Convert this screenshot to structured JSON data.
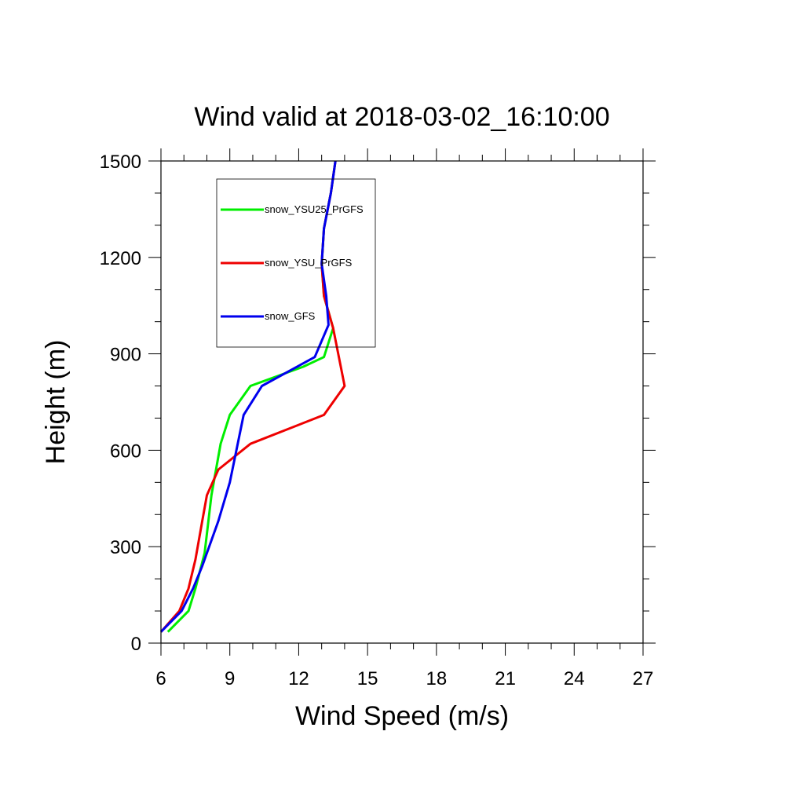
{
  "chart_data": {
    "type": "line",
    "title": "Wind valid at 2018-03-02_16:10:00",
    "xlabel": "Wind Speed (m/s)",
    "ylabel": "Height (m)",
    "xlim": [
      6,
      27
    ],
    "ylim": [
      0,
      1500
    ],
    "xticks": [
      "6",
      "9",
      "12",
      "15",
      "18",
      "21",
      "24",
      "27"
    ],
    "yticks": [
      "0",
      "300",
      "600",
      "900",
      "1200",
      "1500"
    ],
    "legend_placement": "upper-left inside plot",
    "grid": false,
    "series": [
      {
        "name": "snow_YSU25_PrGFS",
        "color": "#00ee00",
        "x": [
          6.3,
          7.2,
          7.5,
          7.9,
          8.2,
          8.6,
          9.0,
          9.9,
          12.2,
          13.1,
          13.5,
          13.1,
          13.0,
          13.1,
          13.4,
          13.6
        ],
        "y": [
          35,
          100,
          170,
          280,
          460,
          620,
          710,
          800,
          860,
          890,
          980,
          1080,
          1180,
          1290,
          1400,
          1500
        ]
      },
      {
        "name": "snow_YSU_PrGFS",
        "color": "#ee0000",
        "x": [
          6.0,
          6.8,
          7.2,
          7.5,
          7.8,
          8.0,
          8.5,
          9.9,
          13.1,
          14.0,
          13.5,
          13.1,
          13.0,
          13.1,
          13.4,
          13.6
        ],
        "y": [
          35,
          100,
          170,
          260,
          380,
          460,
          540,
          620,
          710,
          800,
          980,
          1080,
          1180,
          1290,
          1400,
          1500
        ]
      },
      {
        "name": "snow_GFS",
        "color": "#0000ee",
        "x": [
          6.0,
          6.9,
          7.4,
          7.8,
          8.5,
          9.0,
          9.6,
          10.4,
          12.7,
          13.3,
          13.2,
          13.0,
          13.0,
          13.1,
          13.4,
          13.6
        ],
        "y": [
          35,
          100,
          170,
          240,
          380,
          500,
          710,
          800,
          890,
          990,
          1080,
          1180,
          1180,
          1290,
          1400,
          1500
        ]
      }
    ]
  }
}
